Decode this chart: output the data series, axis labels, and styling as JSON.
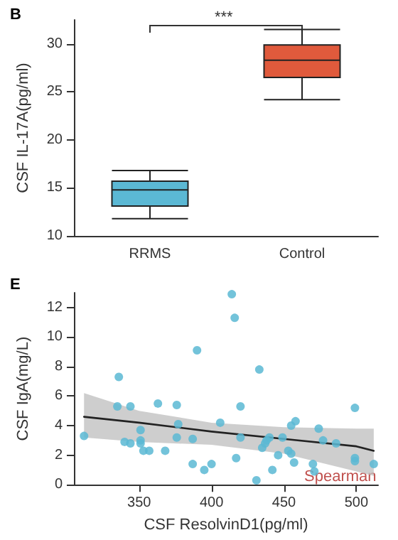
{
  "chart_data": [
    {
      "type": "box",
      "title": "B",
      "ylabel": "CSF IL-17A(pg/ml)",
      "categories": [
        "RRMS",
        "Control"
      ],
      "ylim": [
        10,
        32.5
      ],
      "yticks": [
        10,
        15,
        20,
        25,
        30
      ],
      "grid": false,
      "annotations": [
        "***"
      ],
      "series": [
        {
          "colors": [
            "#5bb8d4",
            "#e05a3c"
          ],
          "boxes": [
            {
              "low": 11.8,
              "q1": 13.1,
              "median": 14.8,
              "q3": 15.7,
              "high": 16.8
            },
            {
              "low": 24.2,
              "q1": 26.5,
              "median": 28.3,
              "q3": 29.9,
              "high": 31.5
            }
          ]
        }
      ]
    },
    {
      "type": "scatter",
      "title": "E",
      "xlabel": "CSF ResolvinD1(pg/ml)",
      "ylabel": "CSF IgA(mg/L)",
      "xlim": [
        305,
        515
      ],
      "xticks": [
        350,
        400,
        450,
        500
      ],
      "ylim": [
        0,
        13
      ],
      "yticks": [
        0,
        2,
        4,
        6,
        8,
        10,
        12
      ],
      "grid": false,
      "marker": "circle",
      "annotations": [
        "Spearman"
      ],
      "series": [
        {
          "type": "scatter",
          "color": "#5bb8d4",
          "x": [
            312,
            336,
            335,
            344,
            340,
            344,
            351,
            351,
            351,
            353,
            357,
            363,
            368,
            376,
            377,
            376,
            387,
            387,
            390,
            395,
            400,
            406,
            414,
            416,
            417,
            420,
            420,
            433,
            431,
            435,
            437,
            438,
            440,
            442,
            446,
            449,
            453,
            455,
            455,
            458,
            457,
            474,
            470,
            471,
            477,
            486,
            499,
            499,
            499,
            512
          ],
          "values": [
            3.3,
            7.3,
            5.3,
            5.3,
            2.9,
            2.8,
            3.7,
            3.0,
            2.8,
            2.3,
            2.3,
            5.5,
            2.3,
            5.4,
            4.1,
            3.2,
            3.1,
            1.4,
            9.1,
            1.0,
            1.4,
            4.2,
            12.9,
            11.3,
            1.8,
            5.3,
            3.2,
            7.8,
            0.3,
            2.5,
            2.8,
            3.0,
            3.2,
            1.0,
            2.0,
            3.2,
            2.3,
            2.1,
            4.0,
            4.3,
            1.5,
            3.8,
            1.4,
            0.9,
            3.0,
            2.8,
            5.2,
            1.8,
            1.6,
            1.4
          ]
        },
        {
          "type": "line",
          "color": "#222222",
          "marker": "none",
          "x": [
            312,
            350,
            400,
            450,
            500,
            512
          ],
          "values": [
            4.6,
            4.2,
            3.6,
            3.1,
            2.6,
            2.3
          ],
          "lower": [
            3.2,
            2.9,
            2.7,
            2.1,
            0.9,
            0.6
          ],
          "upper": [
            6.2,
            5.0,
            4.2,
            3.9,
            3.8,
            3.8
          ]
        }
      ]
    }
  ]
}
